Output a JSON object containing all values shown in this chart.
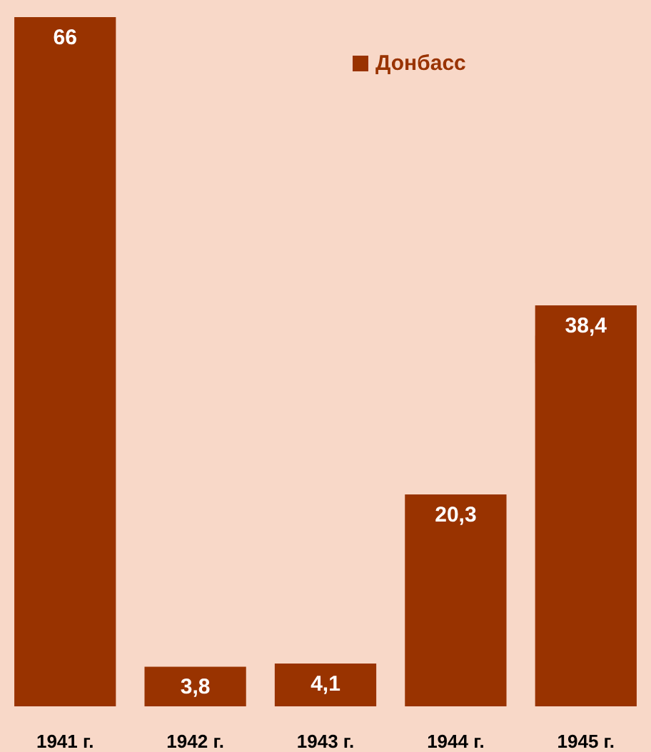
{
  "chart_data": {
    "type": "bar",
    "categories": [
      "1941 г.",
      "1942 г.",
      "1943 г.",
      "1944 г.",
      "1945 г."
    ],
    "series": [
      {
        "name": "Донбасс",
        "color": "#993300",
        "values": [
          66,
          3.8,
          4.1,
          20.3,
          38.4
        ],
        "value_labels": [
          "66",
          "3,8",
          "4,1",
          "20,3",
          "38,4"
        ]
      }
    ],
    "legend": "top"
  }
}
